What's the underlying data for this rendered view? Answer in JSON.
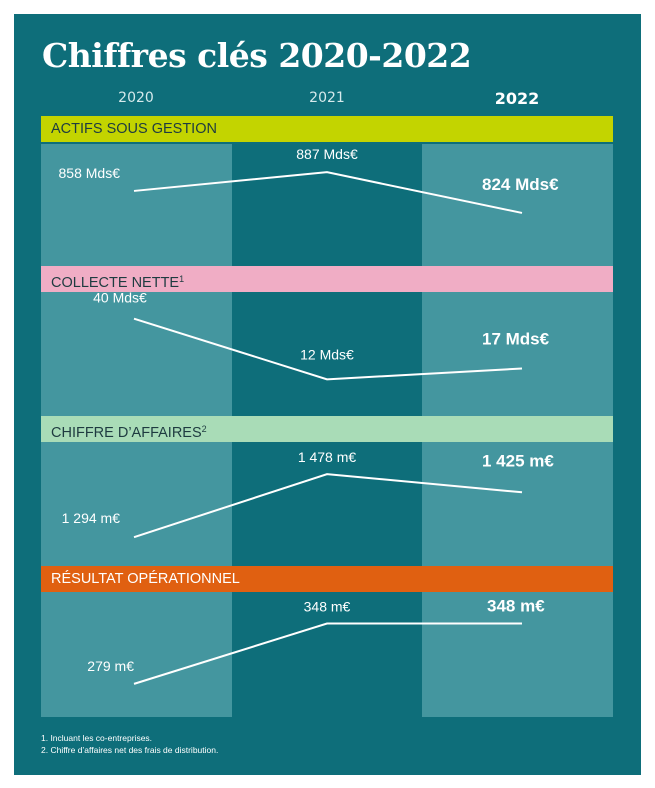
{
  "title": "Chiffres clés 2020-2022",
  "years": [
    "2020",
    "2021",
    "2022"
  ],
  "colors": {
    "background": "#0e6e7a",
    "column_light": "#44969f",
    "column_dark": "#0e6e7a",
    "line": "#ffffff"
  },
  "chart_data": [
    {
      "type": "line",
      "title": "ACTIFS SOUS GESTION",
      "band_color": "#c3d400",
      "x": [
        "2020",
        "2021",
        "2022"
      ],
      "values": [
        858,
        887,
        824
      ],
      "labels": [
        "858 Mds€",
        "887 Mds€",
        "824 Mds€"
      ],
      "unit": "Mds€",
      "ylim": [
        810,
        895
      ]
    },
    {
      "type": "line",
      "title": "COLLECTE NETTE",
      "title_sup": "1",
      "band_color": "#f0adc5",
      "x": [
        "2020",
        "2021",
        "2022"
      ],
      "values": [
        40,
        12,
        17
      ],
      "labels": [
        "40 Mds€",
        "12 Mds€",
        "17 Mds€"
      ],
      "unit": "Mds€",
      "ylim": [
        8,
        44
      ]
    },
    {
      "type": "line",
      "title": "CHIFFRE D’AFFAIRES",
      "title_sup": "2",
      "band_color": "#a9dcb7",
      "x": [
        "2020",
        "2021",
        "2022"
      ],
      "values": [
        1294,
        1478,
        1425
      ],
      "labels": [
        "1 294 m€",
        "1 478 m€",
        "1 425 m€"
      ],
      "unit": "m€",
      "ylim": [
        1280,
        1490
      ]
    },
    {
      "type": "line",
      "title": "RÉSULTAT OPÉRATIONNEL",
      "band_color": "#e06011",
      "x": [
        "2020",
        "2021",
        "2022"
      ],
      "values": [
        279,
        348,
        348
      ],
      "labels": [
        "279 m€",
        "348 m€",
        "348 m€"
      ],
      "unit": "m€",
      "ylim": [
        272,
        352
      ]
    }
  ],
  "footnotes": [
    "1. Incluant les co-entreprises.",
    "2. Chiffre d’affaires net des frais de distribution."
  ]
}
